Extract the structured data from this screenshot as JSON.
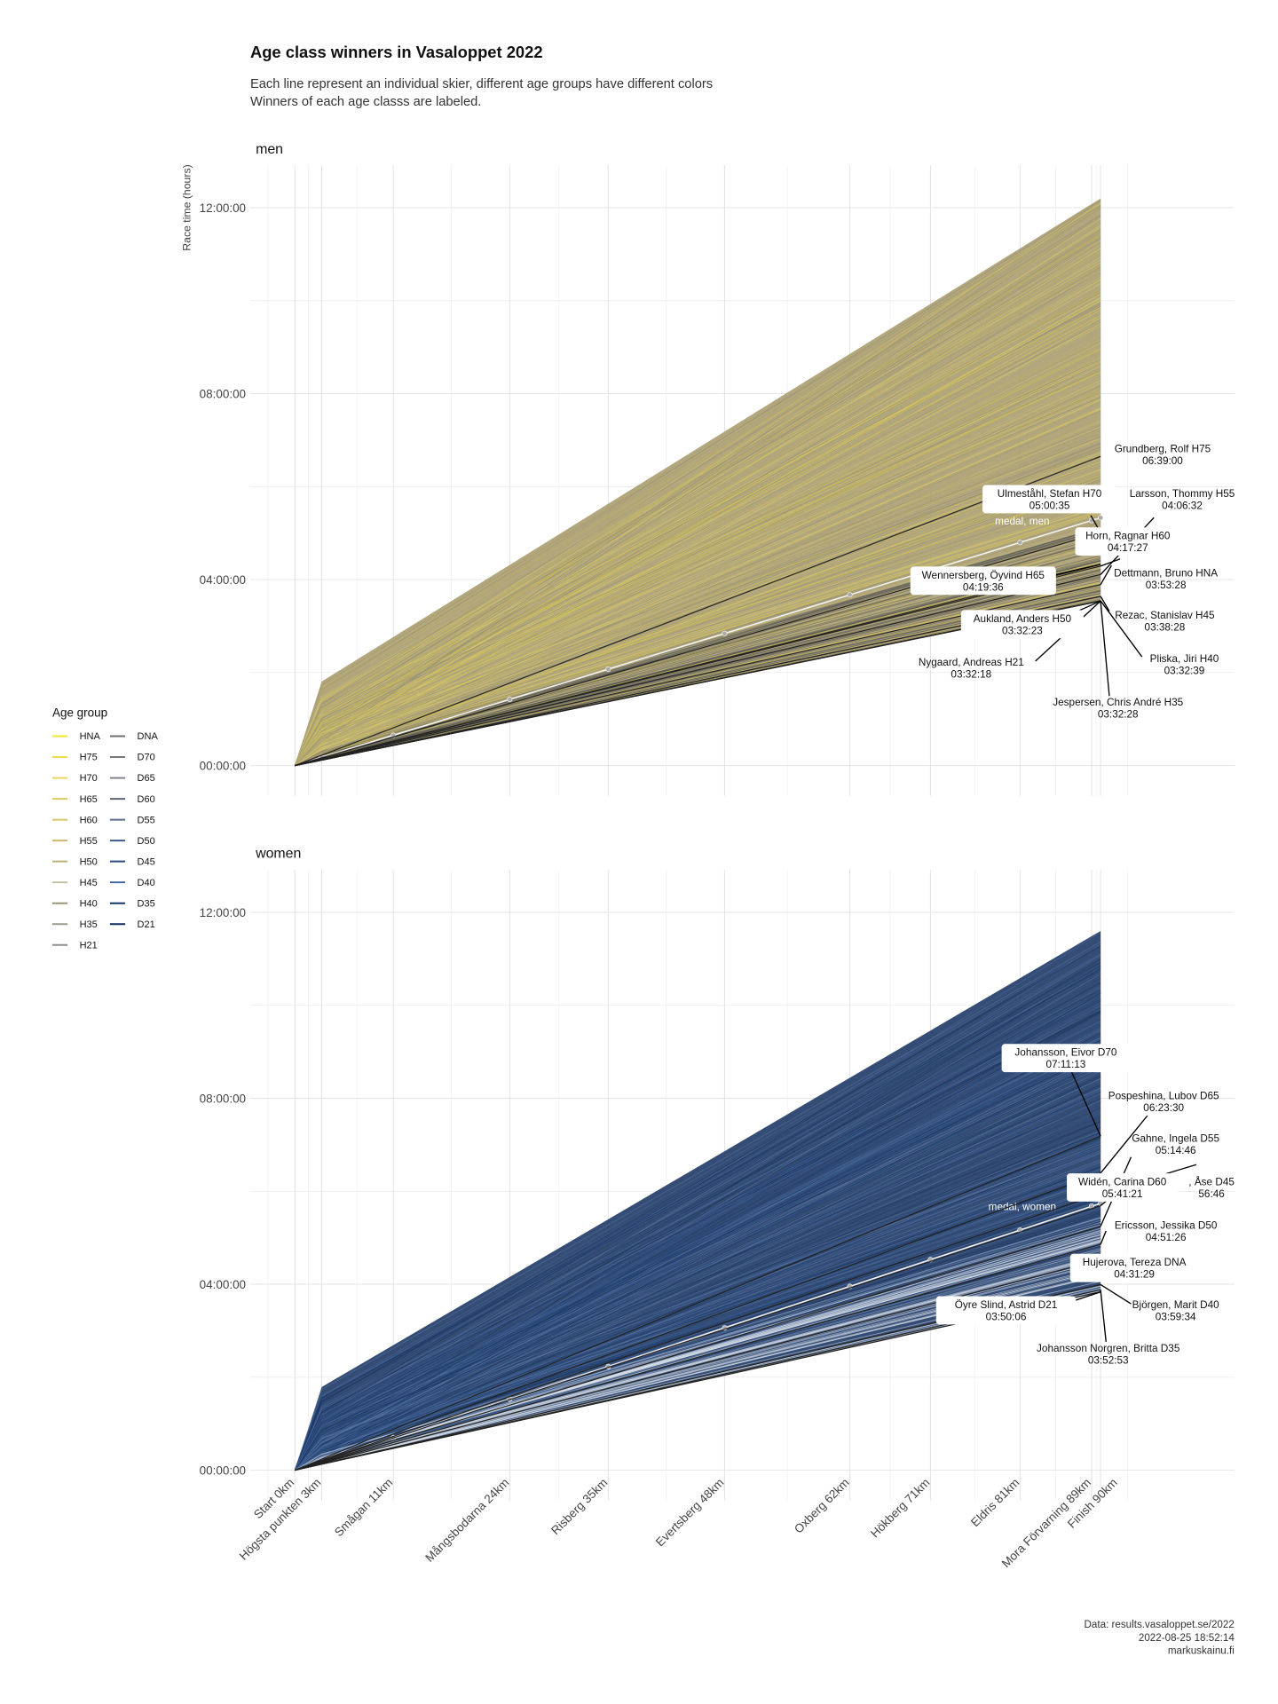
{
  "chart_data": {
    "type": "line",
    "title": "Age class winners in Vasaloppet 2022",
    "subtitle": [
      "Each line represent an individual skier, different age groups have different colors",
      "Winners of each age classs are labeled."
    ],
    "xlabel": "",
    "ylabel": "Race time (hours)",
    "ylim_hours": [
      0,
      12.5
    ],
    "yticks": [
      {
        "label": "00:00:00",
        "hours": 0
      },
      {
        "label": "04:00:00",
        "hours": 4
      },
      {
        "label": "08:00:00",
        "hours": 8
      },
      {
        "label": "12:00:00",
        "hours": 12
      }
    ],
    "grid": true,
    "checkpoints": [
      {
        "label": "Start 0km",
        "km": 0
      },
      {
        "label": "Högsta punkten 3km",
        "km": 3
      },
      {
        "label": "Smågan 11km",
        "km": 11
      },
      {
        "label": "Mångsbodarna 24km",
        "km": 24
      },
      {
        "label": "Risberg 35km",
        "km": 35
      },
      {
        "label": "Evertsberg 48km",
        "km": 48
      },
      {
        "label": "Oxberg 62km",
        "km": 62
      },
      {
        "label": "Hökberg 71km",
        "km": 71
      },
      {
        "label": "Eldris 81km",
        "km": 81
      },
      {
        "label": "Mora Förvarning 89km",
        "km": 89
      },
      {
        "label": "Finish 90km",
        "km": 90
      }
    ],
    "panels": [
      {
        "name": "men",
        "fastest_finish_hours": 3.54,
        "slowest_finish_hours": 12.2,
        "fill_color": "#a99c6e",
        "line_colors": [
          "#e4d25a",
          "#d8c766",
          "#cbbd72",
          "#bfb27e",
          "#b3a67a",
          "#9f9670",
          "#c9b84e",
          "#8f8a78"
        ],
        "fast_color": "#555555",
        "medal_label": "medal, men",
        "medal_finish_hours": 5.33,
        "winners": [
          {
            "name": "Grundberg, Rolf H75",
            "time": "06:39:00"
          },
          {
            "name": "Larsson, Thommy H55",
            "time": "04:06:32"
          },
          {
            "name": "Ulmeståhl, Stefan H70",
            "time": "05:00:35"
          },
          {
            "name": "Horn, Ragnar H60",
            "time": "04:17:27"
          },
          {
            "name": "Dettmann, Bruno HNA",
            "time": "03:53:28"
          },
          {
            "name": "Wennersberg, Öyvind H65",
            "time": "04:19:36"
          },
          {
            "name": "Rezac, Stanislav H45",
            "time": "03:38:28"
          },
          {
            "name": "Aukland, Anders H50",
            "time": "03:32:23"
          },
          {
            "name": "Pliska, Jiri H40",
            "time": "03:32:39"
          },
          {
            "name": "Nygaard, Andreas H21",
            "time": "03:32:18"
          },
          {
            "name": "Jespersen, Chris André H35",
            "time": "03:32:28"
          }
        ]
      },
      {
        "name": "women",
        "fastest_finish_hours": 3.84,
        "slowest_finish_hours": 11.6,
        "fill_color": "#1f3a66",
        "line_colors": [
          "#1a3560",
          "#27477a",
          "#35578c",
          "#4a6a9c",
          "#20406e",
          "#5d7aa6",
          "#143058"
        ],
        "fast_color": "#dfe5ee",
        "medal_label": "medal, women",
        "medal_finish_hours": 5.74,
        "winners": [
          {
            "name": "Johansson, Eivor D70",
            "time": "07:11:13"
          },
          {
            "name": "Pospeshina, Lubov D65",
            "time": "06:23:30"
          },
          {
            "name": "Gahne, Ingela D55",
            "time": "05:14:46"
          },
          {
            "name": ", Åse D45",
            "time": "56:46"
          },
          {
            "name": "Widén, Carina D60",
            "time": "05:41:21"
          },
          {
            "name": "Ericsson, Jessika D50",
            "time": "04:51:26"
          },
          {
            "name": "Hujerova, Tereza DNA",
            "time": "04:31:29"
          },
          {
            "name": "Björgen, Marit D40",
            "time": "03:59:34"
          },
          {
            "name": "Öyre Slind, Astrid D21",
            "time": "03:50:06"
          },
          {
            "name": "Johansson Norgren, Britta D35",
            "time": "03:52:53"
          }
        ]
      }
    ],
    "legend": {
      "title": "Age group",
      "placement": "left",
      "items": [
        {
          "label": "HNA",
          "color": "#f5e52e"
        },
        {
          "label": "H75",
          "color": "#f0dc4a"
        },
        {
          "label": "H70",
          "color": "#e8d455"
        },
        {
          "label": "H65",
          "color": "#dccb60"
        },
        {
          "label": "H60",
          "color": "#d6c66b"
        },
        {
          "label": "H55",
          "color": "#c9bc70"
        },
        {
          "label": "H50",
          "color": "#bcb17a"
        },
        {
          "label": "H45",
          "color": "#c3bea2"
        },
        {
          "label": "H40",
          "color": "#9a9476"
        },
        {
          "label": "H35",
          "color": "#9d9a8c"
        },
        {
          "label": "H21",
          "color": "#8e8e8a"
        },
        {
          "label": "DNA",
          "color": "#6e6e70"
        },
        {
          "label": "D70",
          "color": "#787878"
        },
        {
          "label": "D65",
          "color": "#7a7e8a"
        },
        {
          "label": "D60",
          "color": "#60667a"
        },
        {
          "label": "D55",
          "color": "#5a6a8a"
        },
        {
          "label": "D50",
          "color": "#3d5a8a"
        },
        {
          "label": "D45",
          "color": "#2a4a80"
        },
        {
          "label": "D40",
          "color": "#3a64a0"
        },
        {
          "label": "D35",
          "color": "#123466"
        },
        {
          "label": "D21",
          "color": "#0e2a58"
        }
      ]
    },
    "caption": [
      "Data: results.vasaloppet.se/2022",
      "2022-08-25 18:52:14",
      "markuskainu.fi"
    ]
  }
}
